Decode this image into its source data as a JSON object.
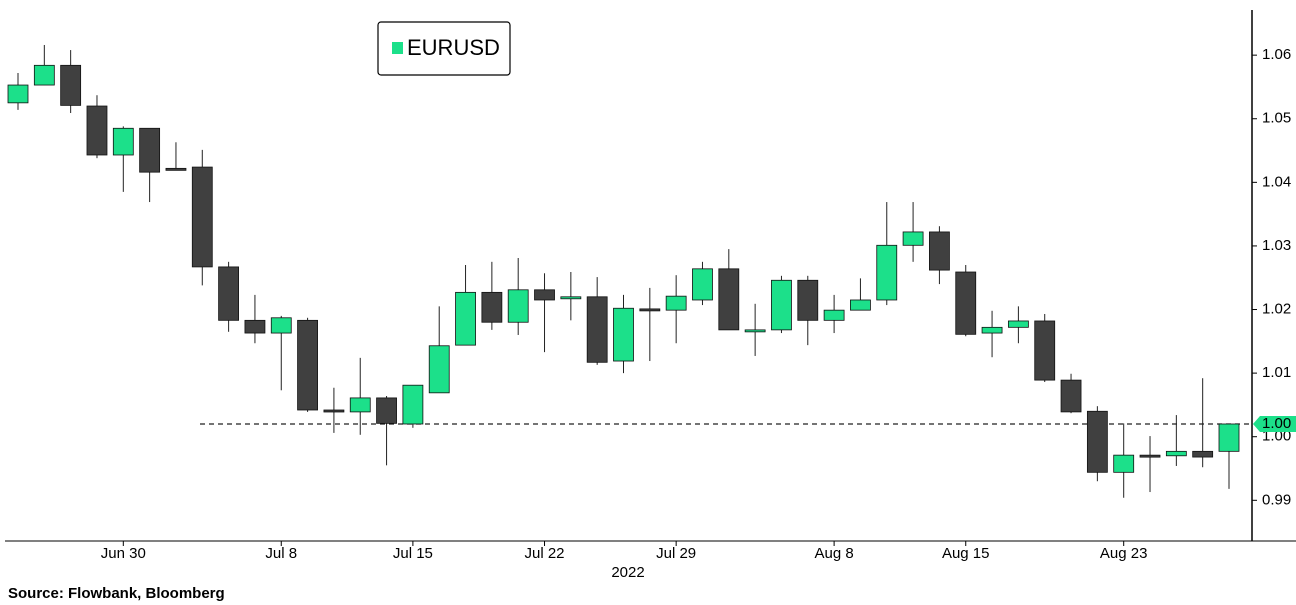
{
  "chart_data": {
    "type": "candlestick",
    "x_label": "2022",
    "source": "Source: Flowbank, Bloomberg",
    "categories": [
      null,
      null,
      null,
      null,
      "Jun 30",
      null,
      null,
      null,
      null,
      null,
      "Jul 8",
      null,
      null,
      null,
      null,
      "Jul 15",
      null,
      null,
      null,
      null,
      "Jul 22",
      null,
      null,
      null,
      null,
      "Jul 29",
      null,
      null,
      null,
      null,
      null,
      "Aug 8",
      null,
      null,
      null,
      null,
      "Aug 15",
      null,
      null,
      null,
      null,
      null,
      "Aug 23",
      null,
      null,
      null,
      null
    ],
    "series": [
      {
        "name": "EURUSD",
        "color": "#1ce08a",
        "down_color": "#404040",
        "open": [
          1.0525,
          1.0553,
          1.0584,
          1.052,
          1.0443,
          1.0485,
          1.0422,
          1.0424,
          1.0267,
          1.0183,
          1.0163,
          1.0183,
          1.0042,
          1.0039,
          1.0061,
          1.002,
          1.0069,
          1.0144,
          1.0227,
          1.018,
          1.0231,
          1.0219,
          1.022,
          1.0119,
          1.0201,
          1.0199,
          1.0215,
          1.0264,
          1.0167,
          1.0168,
          1.0246,
          1.0183,
          1.0199,
          1.0215,
          1.0301,
          1.0322,
          1.0259,
          1.0163,
          1.0172,
          1.0182,
          1.0089,
          1.004,
          0.9944,
          0.9971,
          0.997,
          0.9977,
          0.9977
        ],
        "high": [
          1.0572,
          1.0616,
          1.0608,
          1.0537,
          1.0488,
          1.0485,
          1.0463,
          1.0451,
          1.0275,
          1.0223,
          1.019,
          1.0187,
          1.0077,
          1.0124,
          1.0064,
          1.0081,
          1.0205,
          1.027,
          1.0275,
          1.0281,
          1.0257,
          1.0259,
          1.0251,
          1.0223,
          1.0234,
          1.0254,
          1.0275,
          1.0295,
          1.0209,
          1.0253,
          1.0253,
          1.0223,
          1.0249,
          1.0369,
          1.0369,
          1.0331,
          1.027,
          1.0198,
          1.0205,
          1.0193,
          1.0099,
          1.0048,
          1.0021,
          1.0001,
          1.0034,
          1.0092,
          1.002
        ],
        "low": [
          1.0514,
          1.0553,
          1.0509,
          1.0438,
          1.0385,
          1.0369,
          1.0419,
          1.0238,
          1.0165,
          1.0147,
          1.0073,
          1.0039,
          1.0006,
          1.0003,
          0.9955,
          1.0014,
          1.0069,
          1.0144,
          1.0168,
          1.016,
          1.0133,
          1.0183,
          1.0113,
          1.01,
          1.0119,
          1.0147,
          1.0207,
          1.0168,
          1.0127,
          1.0163,
          1.0144,
          1.0163,
          1.0199,
          1.0207,
          1.0275,
          1.024,
          1.0158,
          1.0125,
          1.0147,
          1.0086,
          1.0037,
          0.993,
          0.9904,
          0.9913,
          0.9954,
          0.9952,
          0.9918
        ],
        "close": [
          1.0553,
          1.0584,
          1.0521,
          1.0443,
          1.0485,
          1.0416,
          1.0421,
          1.0267,
          1.0183,
          1.0163,
          1.0187,
          1.0042,
          1.0041,
          1.0061,
          1.0021,
          1.0081,
          1.0143,
          1.0227,
          1.018,
          1.0231,
          1.0215,
          1.022,
          1.0117,
          1.0202,
          1.02,
          1.0221,
          1.0264,
          1.0168,
          1.0168,
          1.0246,
          1.0183,
          1.0199,
          1.0215,
          1.0301,
          1.0322,
          1.0262,
          1.0161,
          1.0172,
          1.0182,
          1.0089,
          1.0039,
          0.9944,
          0.9971,
          0.997,
          0.9977,
          0.9968,
          1.002
        ]
      }
    ],
    "reference_line": {
      "value": 1.002,
      "label": "1.00"
    },
    "ylim": [
      0.9836,
      1.0671
    ],
    "yticks": [
      0.99,
      {
        "value": 1,
        "label": "1.00"
      },
      1.01,
      1.02,
      1.03,
      1.04,
      1.05,
      1.06
    ],
    "legend": "top-left"
  }
}
